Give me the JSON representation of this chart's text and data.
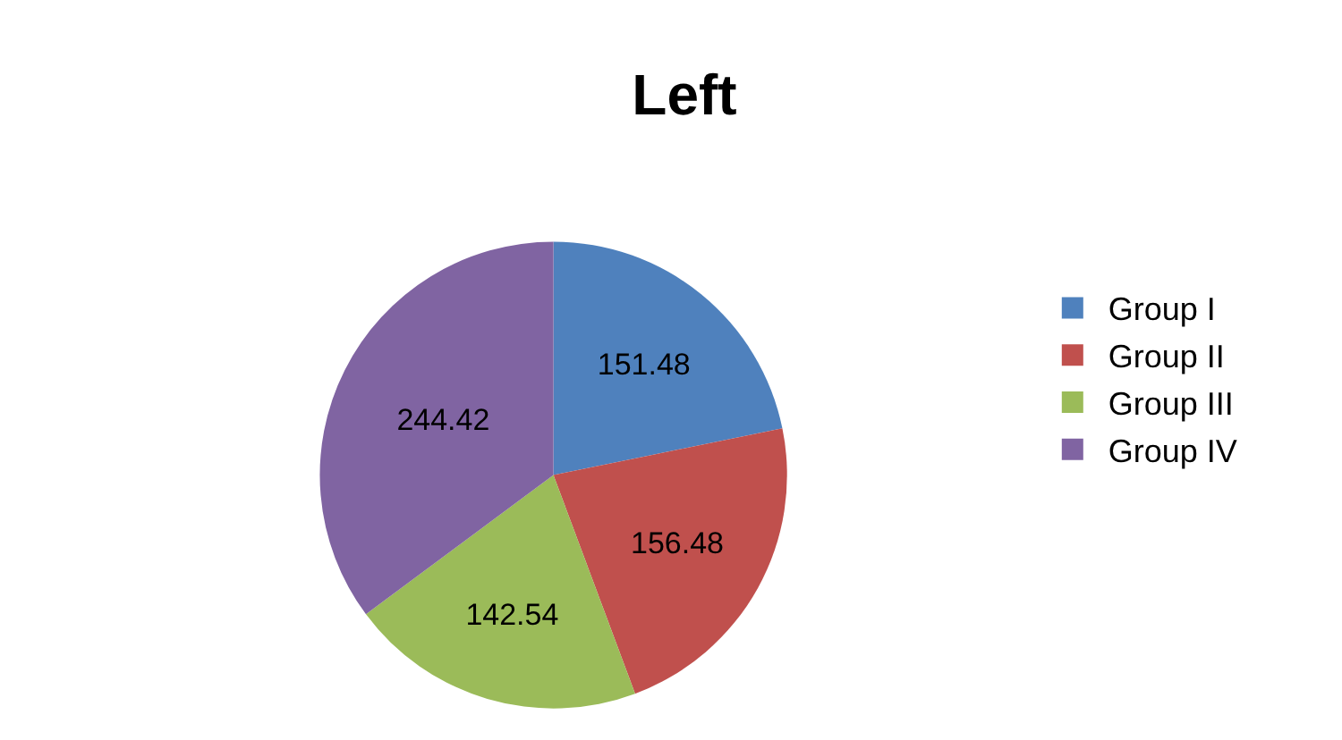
{
  "chart_data": {
    "type": "pie",
    "title": "Left",
    "categories": [
      "Group I",
      "Group II",
      "Group III",
      "Group IV"
    ],
    "values": [
      151.48,
      156.48,
      142.54,
      244.42
    ],
    "colors": [
      "#4f81bd",
      "#c0504d",
      "#9bbb59",
      "#8064a2"
    ],
    "data_labels": true,
    "legend": "right"
  }
}
